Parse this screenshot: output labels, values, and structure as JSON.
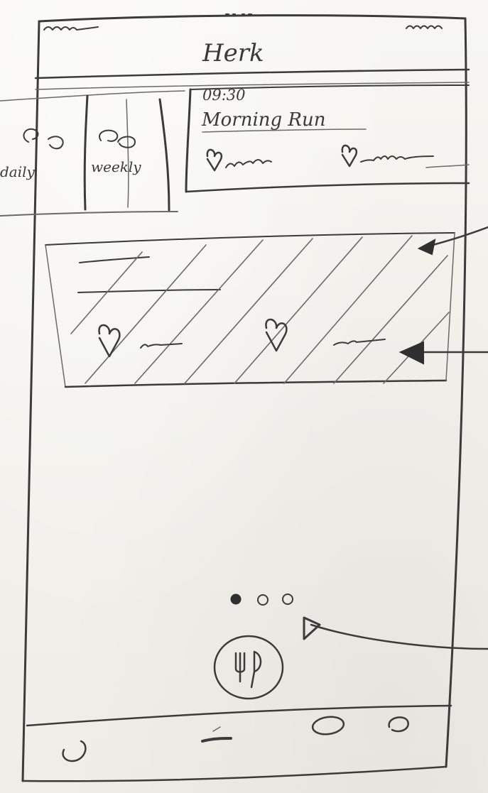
{
  "app": {
    "title": "Herk"
  },
  "tabs": [
    {
      "label": "daily",
      "icon": "repeat-icon"
    },
    {
      "label": "weekly",
      "icon": "repeat-icon"
    }
  ],
  "upcoming": {
    "time": "09:30",
    "title": "Morning Run"
  },
  "carousel": {
    "pages": 3,
    "active_page": 1
  },
  "center_button": {
    "icon": "fork-knife-icon"
  },
  "bottom_nav": {
    "items": [
      "home-icon",
      "progress-icon",
      "search-icon",
      "profile-icon"
    ]
  },
  "colors": {
    "pencil": "#3b3b3b",
    "paper": "#f3f1ec"
  }
}
